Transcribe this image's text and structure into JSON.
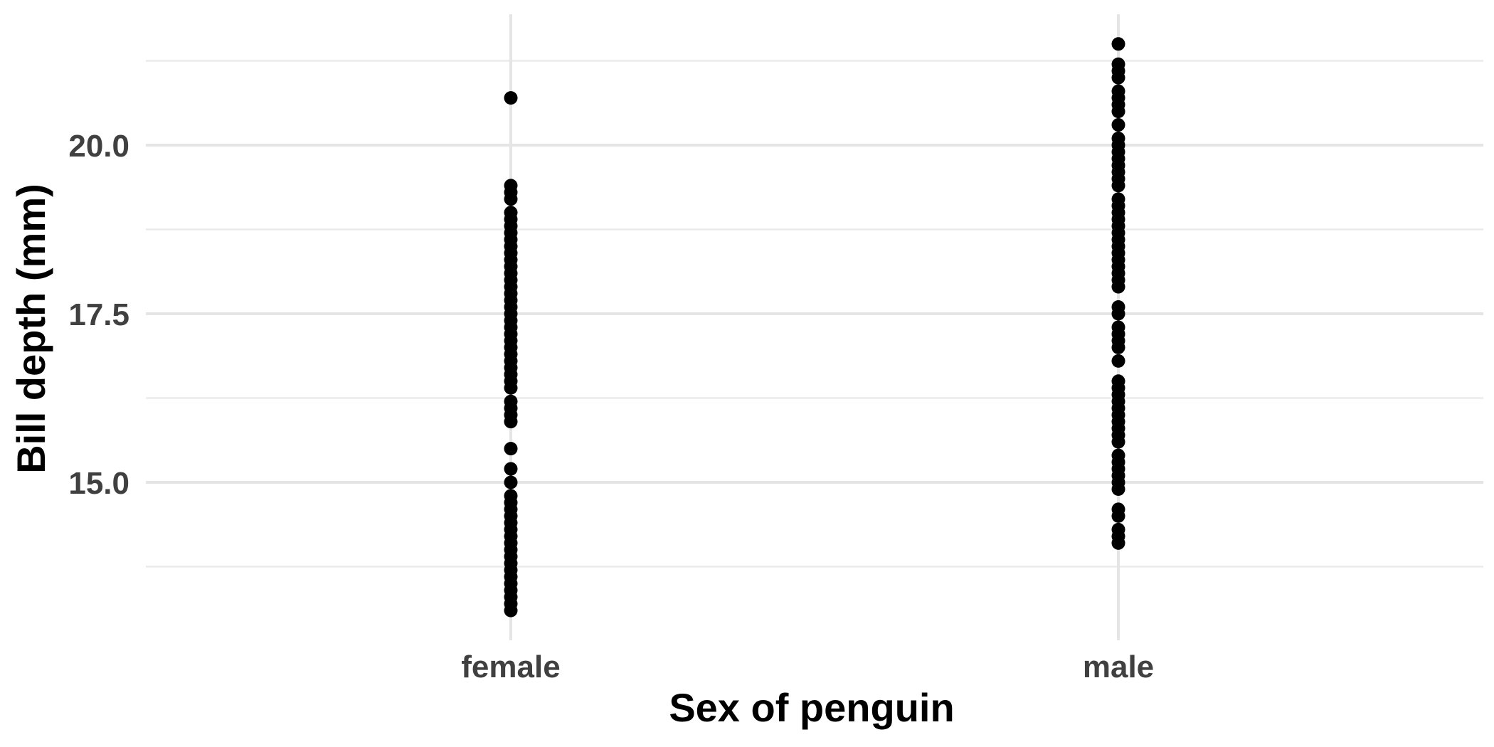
{
  "chart_data": {
    "type": "scatter",
    "title": "",
    "xlabel": "Sex of penguin",
    "ylabel": "Bill depth (mm)",
    "categories": [
      "female",
      "male"
    ],
    "y_ticks": [
      "15.0",
      "17.5",
      "20.0"
    ],
    "ylim": [
      12.5,
      21.5
    ],
    "grid": true,
    "legend": "none",
    "point_color": "#000000",
    "series": [
      {
        "category": "female",
        "values": [
          20.7,
          19.4,
          19.3,
          19.2,
          19.0,
          18.9,
          18.8,
          18.7,
          18.6,
          18.5,
          18.4,
          18.3,
          18.2,
          18.1,
          18.0,
          17.9,
          17.8,
          17.7,
          17.6,
          17.5,
          17.4,
          17.3,
          17.2,
          17.1,
          17.0,
          16.9,
          16.8,
          16.7,
          16.6,
          16.5,
          16.4,
          16.2,
          16.1,
          16.0,
          15.9,
          15.5,
          15.2,
          15.0,
          14.8,
          14.7,
          14.6,
          14.5,
          14.4,
          14.3,
          14.2,
          14.1,
          14.0,
          13.9,
          13.8,
          13.7,
          13.6,
          13.5,
          13.4,
          13.3,
          13.2,
          13.1
        ]
      },
      {
        "category": "male",
        "values": [
          21.5,
          21.2,
          21.1,
          21.0,
          20.8,
          20.7,
          20.6,
          20.5,
          20.3,
          20.1,
          20.0,
          19.9,
          19.8,
          19.7,
          19.6,
          19.5,
          19.4,
          19.2,
          19.1,
          19.0,
          18.9,
          18.8,
          18.7,
          18.6,
          18.5,
          18.4,
          18.3,
          18.2,
          18.1,
          18.0,
          17.9,
          17.6,
          17.5,
          17.3,
          17.2,
          17.1,
          17.0,
          16.8,
          16.5,
          16.4,
          16.3,
          16.2,
          16.1,
          16.0,
          15.9,
          15.8,
          15.7,
          15.6,
          15.4,
          15.3,
          15.2,
          15.1,
          15.0,
          14.9,
          14.6,
          14.5,
          14.3,
          14.2,
          14.1
        ]
      }
    ]
  }
}
